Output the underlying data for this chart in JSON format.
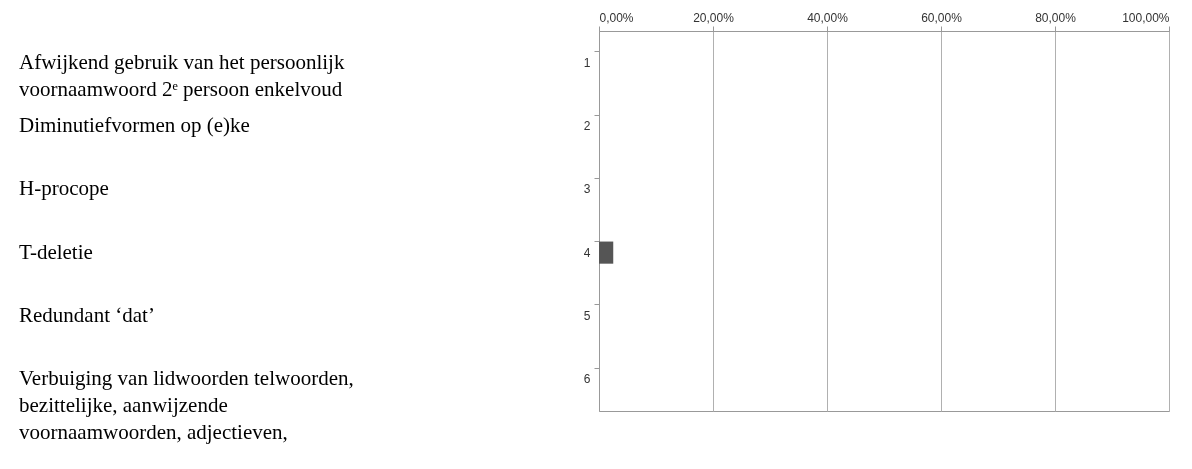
{
  "chart_data": {
    "type": "bar",
    "orientation": "horizontal",
    "categories": [
      "1",
      "2",
      "3",
      "4",
      "5",
      "6"
    ],
    "values": [
      null,
      null,
      null,
      2.5,
      null,
      null
    ],
    "color": "#555555",
    "xlim": [
      0,
      100
    ],
    "xticks": [
      {
        "value": 0,
        "label": "0,00%"
      },
      {
        "value": 20,
        "label": "20,00%"
      },
      {
        "value": 40,
        "label": "40,00%"
      },
      {
        "value": 60,
        "label": "60,00%"
      },
      {
        "value": 80,
        "label": "80,00%"
      },
      {
        "value": 100,
        "label": "100,00%"
      }
    ],
    "grid": "x",
    "annotations": [
      "Afwijkend gebruik van het persoonlijk voornaamwoord 2ᵉ persoon enkelvoud",
      "Diminutiefvormen op (e)ke",
      "H-procope",
      "T-deletie",
      "Redundant ‘dat’",
      "Verbuiging van lidwoorden telwoorden, bezittelijke, aanwijzende voornaamwoorden, adjectieven,"
    ]
  }
}
